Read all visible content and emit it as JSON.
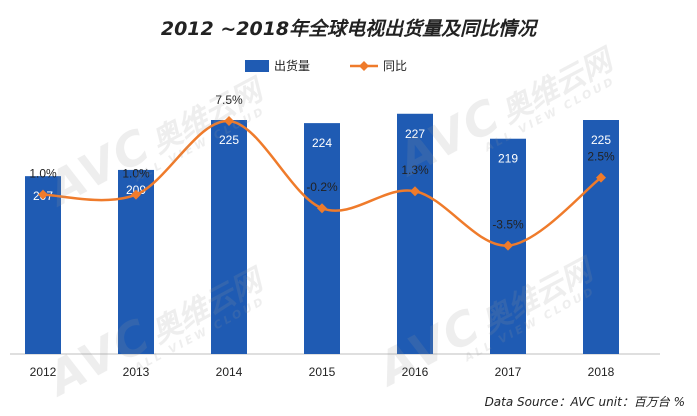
{
  "title": "2012 ~2018年全球电视出货量及同比情况",
  "source": "Data Source：AVC unit：百万台 %",
  "watermark": {
    "brand": "AVC",
    "cn": "奥维云网",
    "en": "ALL VIEW CLOUD"
  },
  "colors": {
    "bar": "#1f5bb3",
    "line": "#ef7b2b",
    "bar_label": "#ffffff",
    "line_label": "#222222"
  },
  "chart_data": {
    "type": "bar",
    "categories": [
      "2012",
      "2013",
      "2014",
      "2015",
      "2016",
      "2017",
      "2018"
    ],
    "series": [
      {
        "name": "出货量",
        "type": "bar",
        "values": [
          207,
          209,
          225,
          224,
          227,
          219,
          225
        ]
      },
      {
        "name": "同比",
        "type": "line",
        "values": [
          1.0,
          1.0,
          7.5,
          -0.2,
          1.3,
          -3.5,
          2.5
        ],
        "labels": [
          "1.0%",
          "1.0%",
          "7.5%",
          "-0.2%",
          "1.3%",
          "-3.5%",
          "2.5%"
        ]
      }
    ],
    "legend": "top-center"
  }
}
